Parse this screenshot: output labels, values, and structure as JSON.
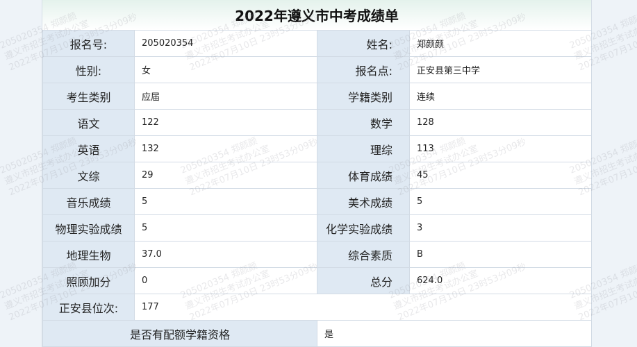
{
  "title": "2022年遵义市中考成绩单",
  "rows": [
    {
      "l1": "报名号:",
      "v1": "205020354",
      "l2": "姓名:",
      "v2": "郑颜颜"
    },
    {
      "l1": "性别:",
      "v1": "女",
      "l2": "报名点:",
      "v2": "正安县第三中学"
    },
    {
      "l1": "考生类别",
      "v1": "应届",
      "l2": "学籍类别",
      "v2": "连续"
    },
    {
      "l1": "语文",
      "v1": "122",
      "l2": "数学",
      "v2": "128"
    },
    {
      "l1": "英语",
      "v1": "132",
      "l2": "理综",
      "v2": "113"
    },
    {
      "l1": "文综",
      "v1": "29",
      "l2": "体育成绩",
      "v2": "45"
    },
    {
      "l1": "音乐成绩",
      "v1": "5",
      "l2": "美术成绩",
      "v2": "5"
    },
    {
      "l1": "物理实验成绩",
      "v1": "5",
      "l2": "化学实验成绩",
      "v2": "3"
    },
    {
      "l1": "地理生物",
      "v1": "37.0",
      "l2": "综合素质",
      "v2": "B"
    },
    {
      "l1": "照顾加分",
      "v1": "0",
      "l2": "总分",
      "v2": "624.0"
    }
  ],
  "rank": {
    "label": "正安县位次:",
    "value": "177"
  },
  "quota": {
    "label": "是否有配额学籍资格",
    "value": "是"
  },
  "watermark": "205020354 郑颜颜 遵义市招生考试办公室 2022年07月10日 23时53分09秒"
}
